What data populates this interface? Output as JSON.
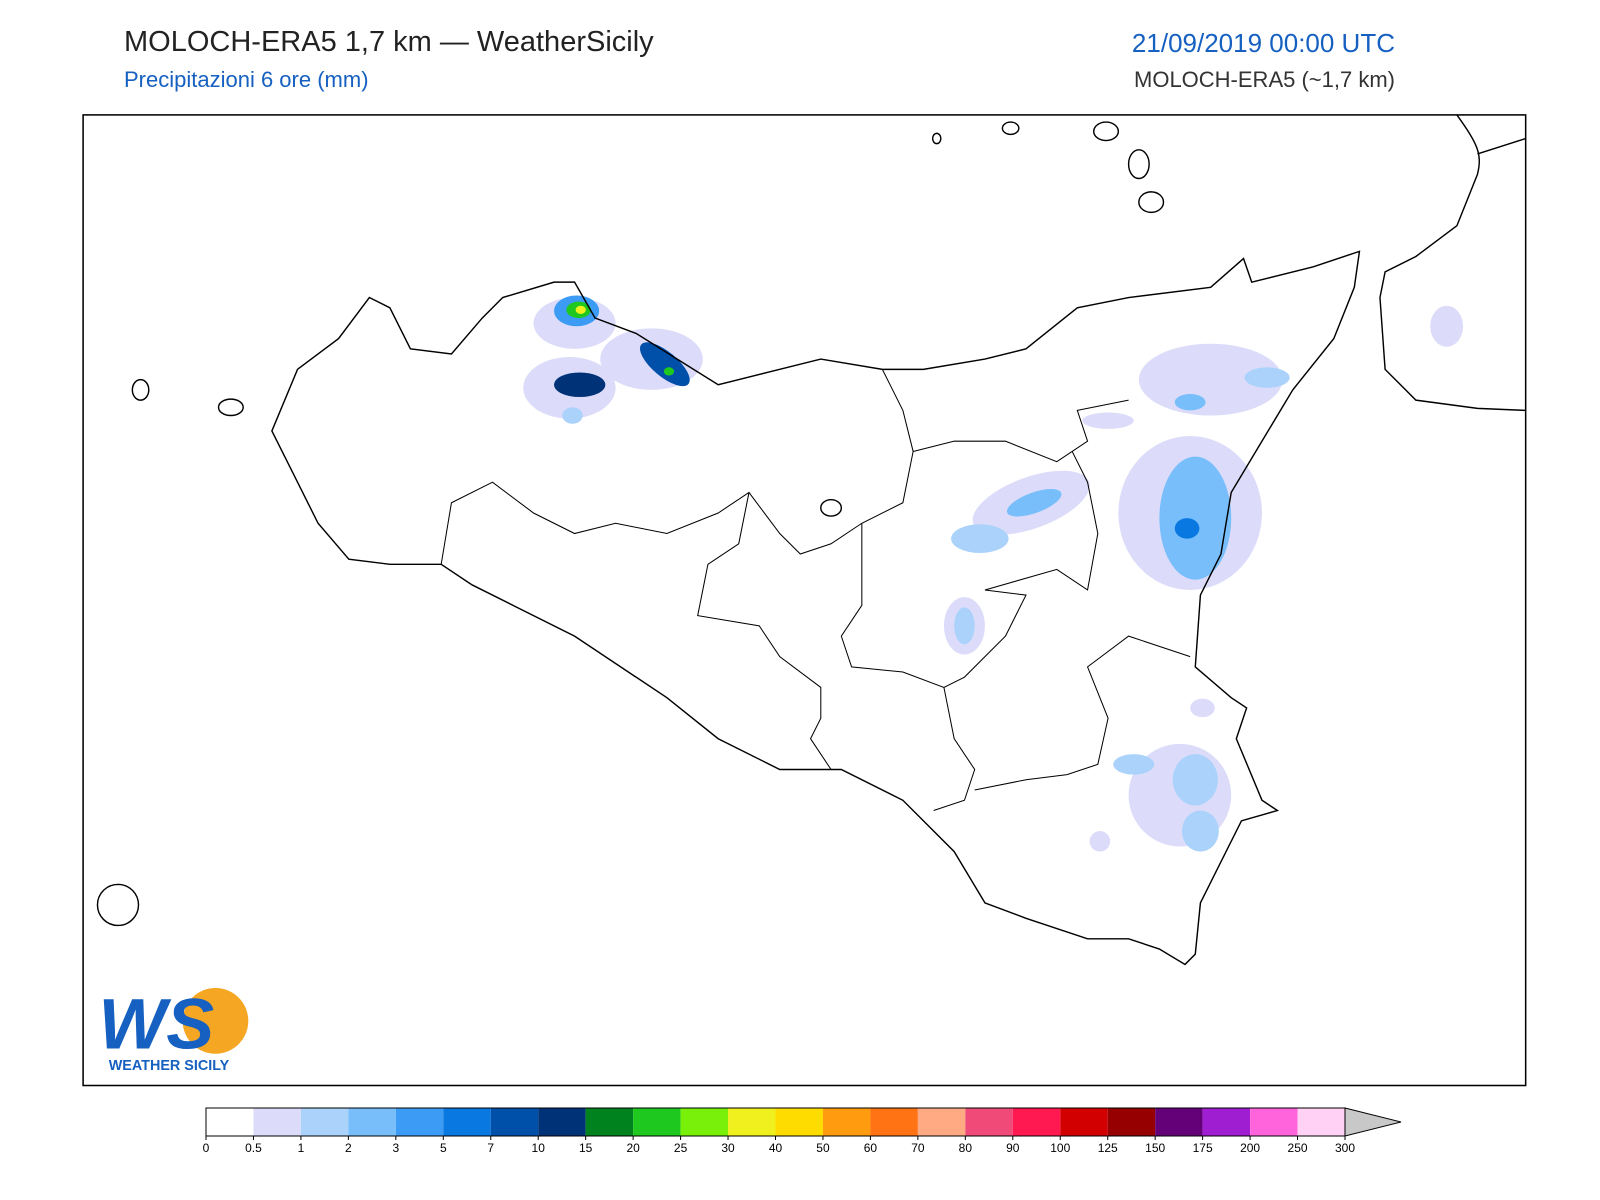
{
  "header": {
    "title": "MOLOCH-ERA5 1,7 km — WeatherSicily",
    "subtitle": "Precipitazioni 6 ore (mm)",
    "datetime": "21/09/2019 00:00 UTC",
    "model": "MOLOCH-ERA5 (~1,7 km)"
  },
  "logo": {
    "mark": "WS",
    "text": "WEATHER SICILY"
  },
  "colorbar": {
    "ticks": [
      0,
      0.5,
      1,
      2,
      3,
      5,
      7,
      10,
      15,
      20,
      25,
      30,
      40,
      50,
      60,
      70,
      80,
      90,
      100,
      125,
      150,
      175,
      200,
      250,
      300
    ],
    "colors": [
      "#ffffff",
      "#dcdcfa",
      "#aad2fa",
      "#78befa",
      "#3c9bf5",
      "#0a78e1",
      "#0050aa",
      "#003278",
      "#00821e",
      "#1ec81e",
      "#78f00a",
      "#f0f01e",
      "#ffdc00",
      "#ff9b0f",
      "#ff7314",
      "#ffaa82",
      "#f04b78",
      "#ff1950",
      "#d20000",
      "#960000",
      "#640078",
      "#a01ed2",
      "#ff64dc",
      "#ffd2f5"
    ],
    "extend_color": "#c8c8c8"
  }
}
